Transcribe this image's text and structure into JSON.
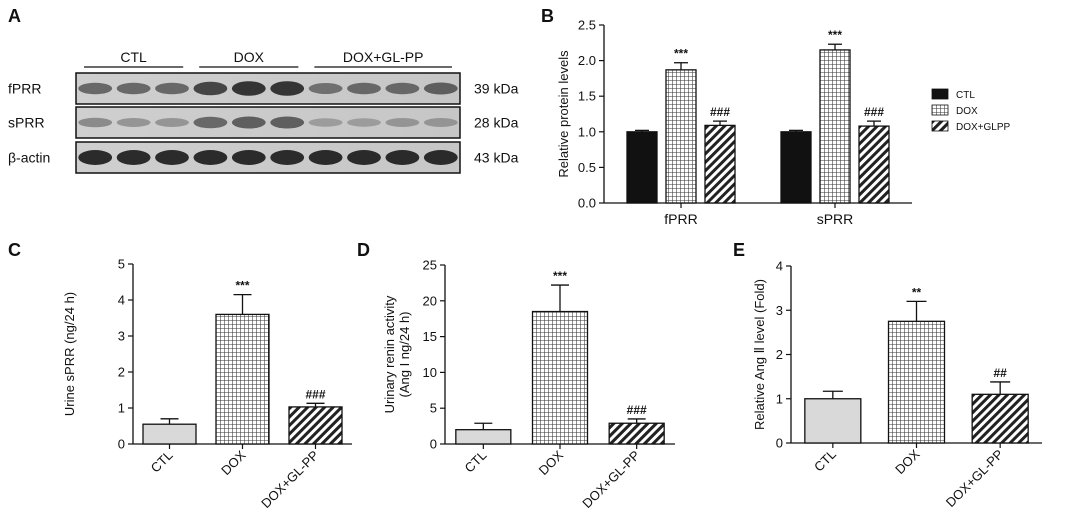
{
  "colors": {
    "bar_ctl_gray": "#d9d9d9",
    "bar_ctl_black": "#111111",
    "axis": "#111111"
  },
  "blot": {
    "panel_label": "A",
    "groups": [
      "CTL",
      "DOX",
      "DOX+GL-PP"
    ],
    "rows": [
      {
        "label": "fPRR",
        "size": "39 kDa",
        "intensity": [
          0.55,
          0.55,
          0.55,
          0.75,
          0.85,
          0.85,
          0.5,
          0.55,
          0.55,
          0.6
        ]
      },
      {
        "label": "sPRR",
        "size": "28 kDa",
        "intensity": [
          0.35,
          0.3,
          0.3,
          0.55,
          0.6,
          0.6,
          0.25,
          0.25,
          0.3,
          0.3
        ]
      },
      {
        "label": "β-actin",
        "size": "43 kDa",
        "intensity": [
          0.9,
          0.9,
          0.9,
          0.9,
          0.9,
          0.9,
          0.9,
          0.9,
          0.9,
          0.9
        ]
      }
    ]
  },
  "chart_data": [
    {
      "panel_label": "B",
      "type": "bar",
      "categories": [
        "fPRR",
        "sPRR"
      ],
      "series": [
        {
          "name": "CTL",
          "values": [
            1.0,
            1.0
          ],
          "errors": [
            0.02,
            0.02
          ],
          "marks": [
            "",
            ""
          ],
          "pattern": "black"
        },
        {
          "name": "DOX",
          "values": [
            1.87,
            2.15
          ],
          "errors": [
            0.1,
            0.08
          ],
          "marks": [
            "***",
            "***"
          ],
          "pattern": "grid"
        },
        {
          "name": "DOX+GLPP",
          "values": [
            1.09,
            1.08
          ],
          "errors": [
            0.06,
            0.07
          ],
          "marks": [
            "###",
            "###"
          ],
          "pattern": "hatch"
        }
      ],
      "ylabel": "Relative protein  levels",
      "ylim": [
        0,
        2.5
      ],
      "yticks": [
        "0.0",
        "0.5",
        "1.0",
        "1.5",
        "2.0",
        "2.5"
      ],
      "legend": "right"
    },
    {
      "panel_label": "C",
      "type": "bar",
      "categories": [
        "CTL",
        "DOX",
        "DOX+GL-PP"
      ],
      "values": [
        0.55,
        3.6,
        1.03
      ],
      "errors": [
        0.15,
        0.55,
        0.1
      ],
      "marks": [
        "",
        "***",
        "###"
      ],
      "patterns": [
        "gray",
        "grid",
        "hatch"
      ],
      "ylabel": "Urine sPRR (ng/24 h)",
      "ylim": [
        0,
        5
      ],
      "yticks": [
        "0",
        "1",
        "2",
        "3",
        "4",
        "5"
      ]
    },
    {
      "panel_label": "D",
      "type": "bar",
      "categories": [
        "CTL",
        "DOX",
        "DOX+GL-PP"
      ],
      "values": [
        2.0,
        18.5,
        2.9
      ],
      "errors": [
        0.9,
        3.7,
        0.6
      ],
      "marks": [
        "",
        "***",
        "###"
      ],
      "patterns": [
        "gray",
        "grid",
        "hatch"
      ],
      "ylabel": [
        "Urinary renin activity",
        "(Ang I ng/24 h)"
      ],
      "ylim": [
        0,
        25
      ],
      "yticks": [
        "0",
        "5",
        "10",
        "15",
        "20",
        "25"
      ]
    },
    {
      "panel_label": "E",
      "type": "bar",
      "categories": [
        "CTL",
        "DOX",
        "DOX+GL-PP"
      ],
      "values": [
        1.0,
        2.75,
        1.1
      ],
      "errors": [
        0.17,
        0.45,
        0.28
      ],
      "marks": [
        "",
        "**",
        "##"
      ],
      "patterns": [
        "gray",
        "grid",
        "hatch"
      ],
      "ylabel": "Relative Ang Ⅱ level (Fold)",
      "ylim": [
        0,
        4
      ],
      "yticks": [
        "0",
        "1",
        "2",
        "3",
        "4"
      ]
    }
  ]
}
